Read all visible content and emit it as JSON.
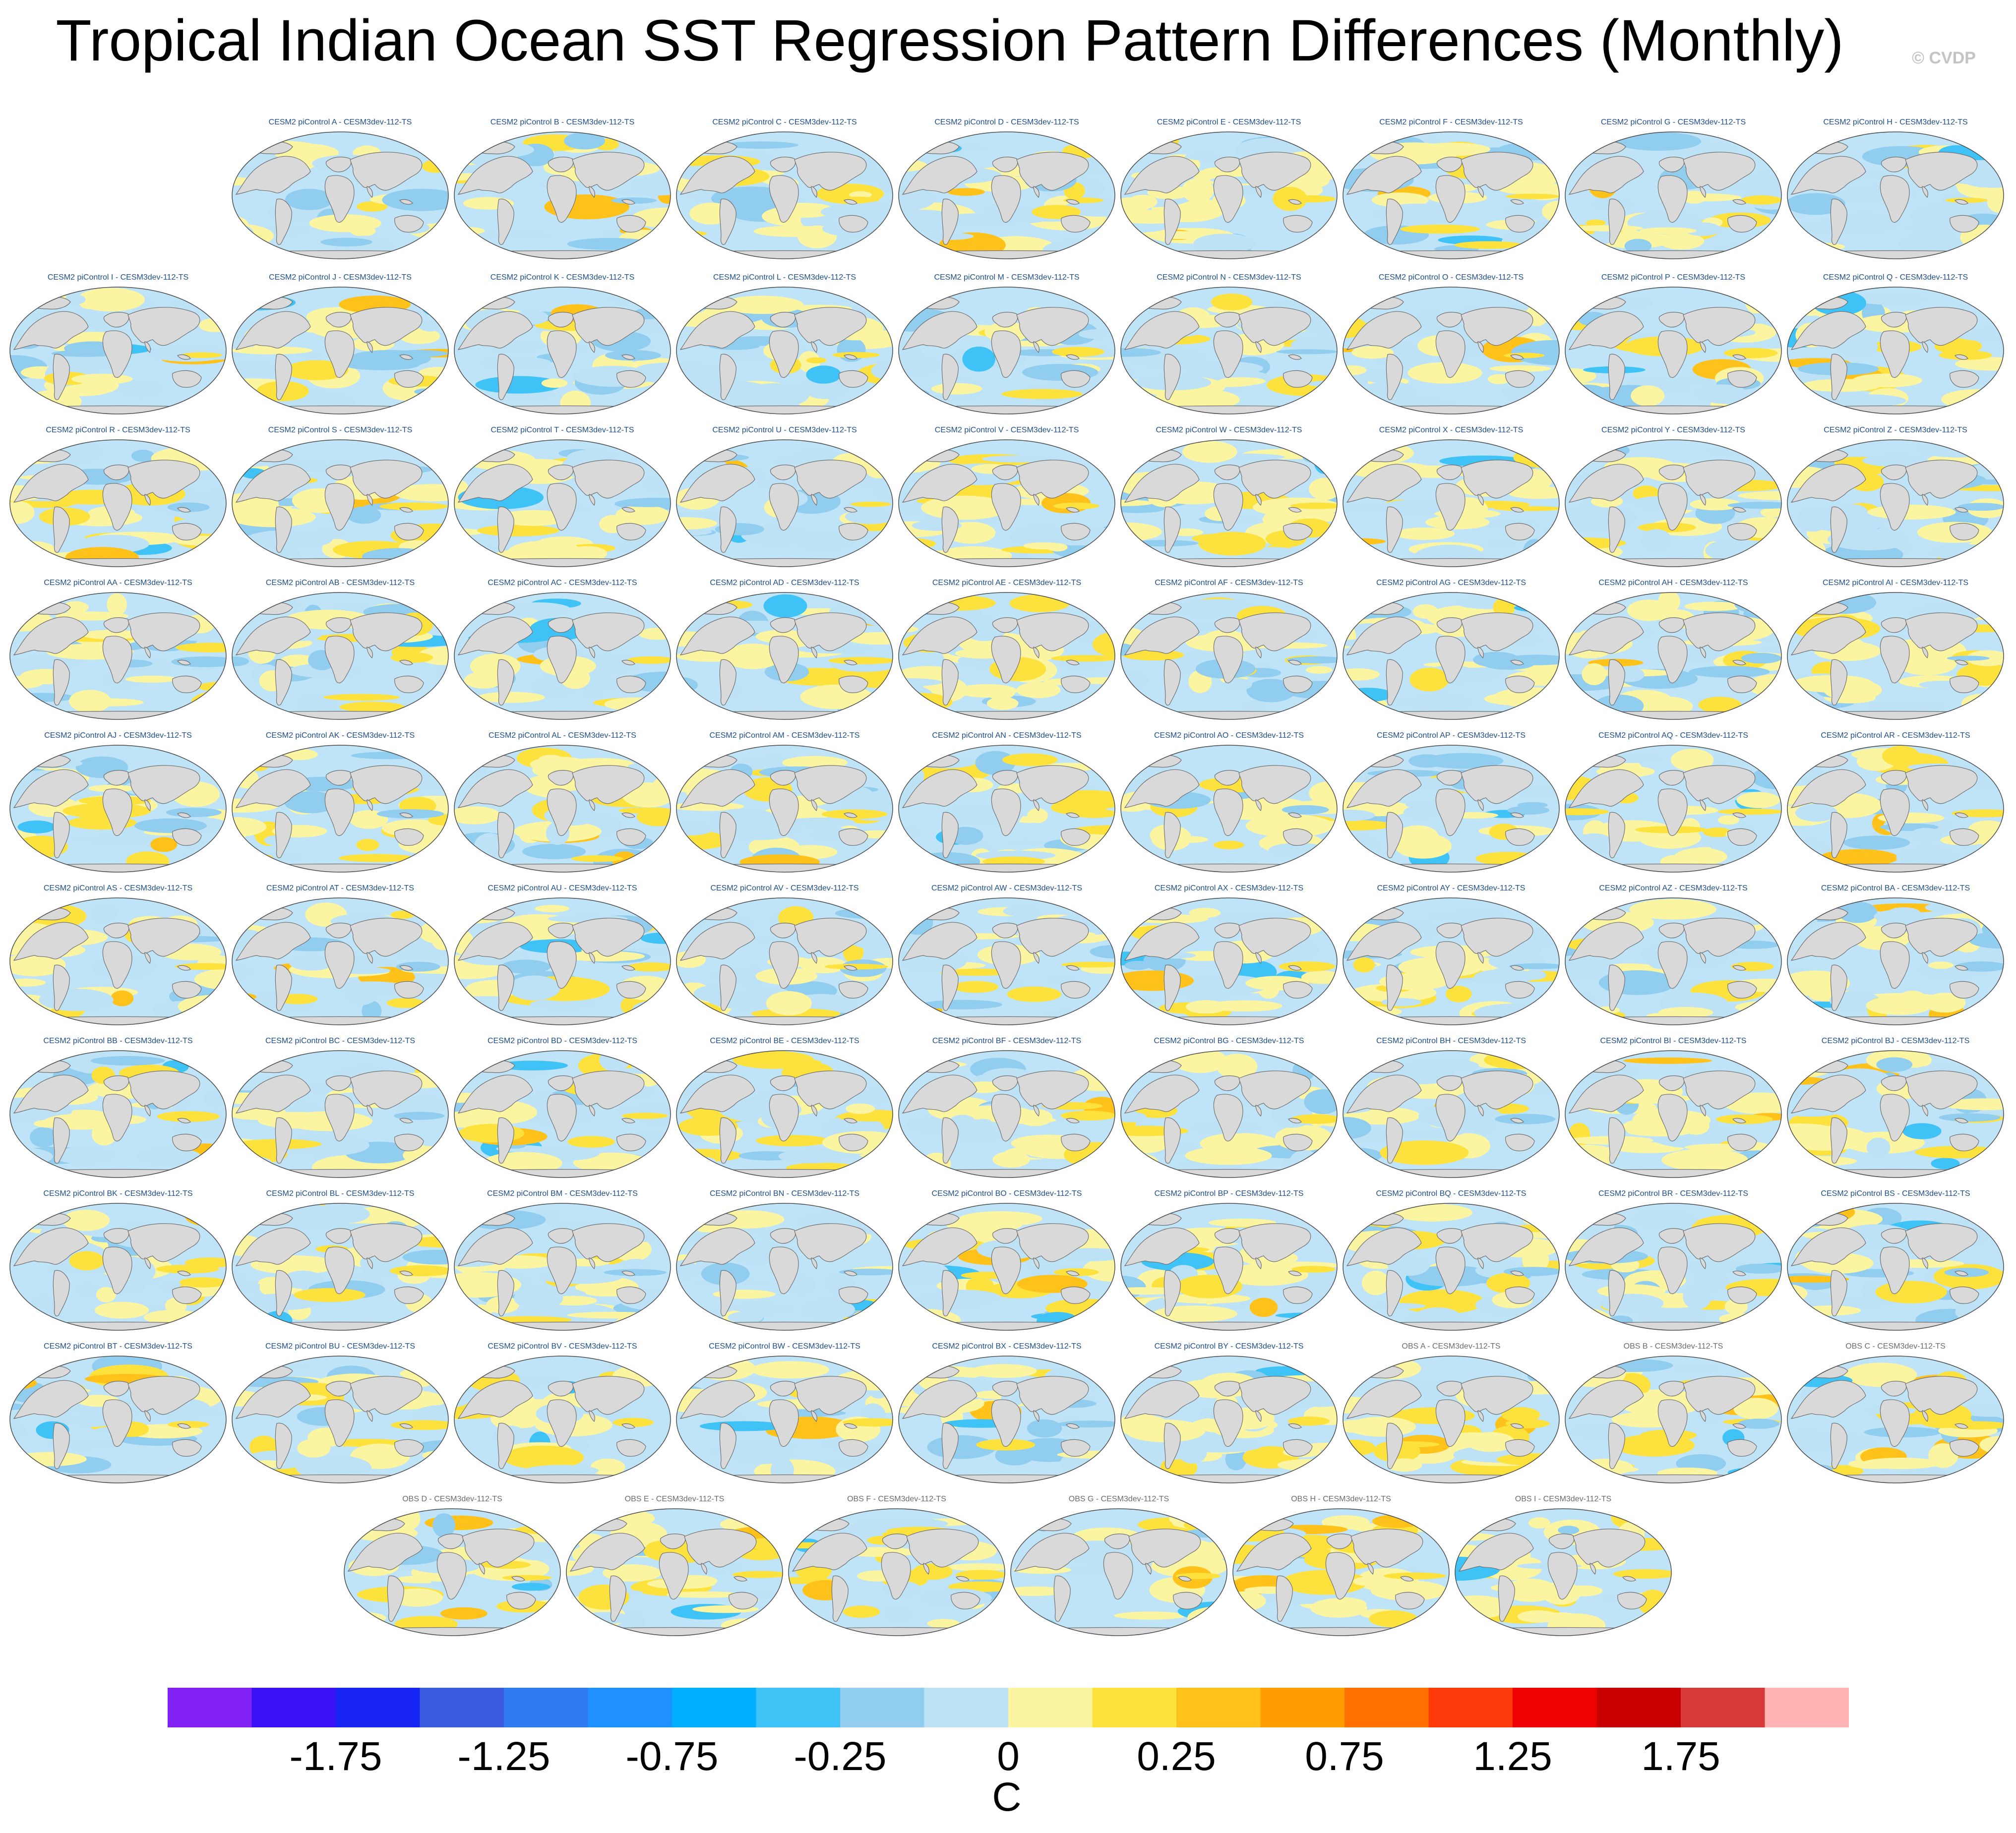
{
  "title": "Tropical Indian Ocean SST Regression Pattern Differences (Monthly)",
  "watermark": "© CVDP",
  "panels": [
    {
      "label": "CESM2 piControl A - CESM3dev-112-TS",
      "type": "model"
    },
    {
      "label": "CESM2 piControl B - CESM3dev-112-TS",
      "type": "model"
    },
    {
      "label": "CESM2 piControl C - CESM3dev-112-TS",
      "type": "model"
    },
    {
      "label": "CESM2 piControl D - CESM3dev-112-TS",
      "type": "model"
    },
    {
      "label": "CESM2 piControl E - CESM3dev-112-TS",
      "type": "model"
    },
    {
      "label": "CESM2 piControl F - CESM3dev-112-TS",
      "type": "model"
    },
    {
      "label": "CESM2 piControl G - CESM3dev-112-TS",
      "type": "model"
    },
    {
      "label": "CESM2 piControl H - CESM3dev-112-TS",
      "type": "model"
    },
    {
      "label": "CESM2 piControl I - CESM3dev-112-TS",
      "type": "model"
    },
    {
      "label": "CESM2 piControl J - CESM3dev-112-TS",
      "type": "model"
    },
    {
      "label": "CESM2 piControl K - CESM3dev-112-TS",
      "type": "model"
    },
    {
      "label": "CESM2 piControl L - CESM3dev-112-TS",
      "type": "model"
    },
    {
      "label": "CESM2 piControl M - CESM3dev-112-TS",
      "type": "model"
    },
    {
      "label": "CESM2 piControl N - CESM3dev-112-TS",
      "type": "model"
    },
    {
      "label": "CESM2 piControl O - CESM3dev-112-TS",
      "type": "model"
    },
    {
      "label": "CESM2 piControl P - CESM3dev-112-TS",
      "type": "model"
    },
    {
      "label": "CESM2 piControl Q - CESM3dev-112-TS",
      "type": "model"
    },
    {
      "label": "CESM2 piControl R - CESM3dev-112-TS",
      "type": "model"
    },
    {
      "label": "CESM2 piControl S - CESM3dev-112-TS",
      "type": "model"
    },
    {
      "label": "CESM2 piControl T - CESM3dev-112-TS",
      "type": "model"
    },
    {
      "label": "CESM2 piControl U - CESM3dev-112-TS",
      "type": "model"
    },
    {
      "label": "CESM2 piControl V - CESM3dev-112-TS",
      "type": "model"
    },
    {
      "label": "CESM2 piControl W - CESM3dev-112-TS",
      "type": "model"
    },
    {
      "label": "CESM2 piControl X - CESM3dev-112-TS",
      "type": "model"
    },
    {
      "label": "CESM2 piControl Y - CESM3dev-112-TS",
      "type": "model"
    },
    {
      "label": "CESM2 piControl Z - CESM3dev-112-TS",
      "type": "model"
    },
    {
      "label": "CESM2 piControl AA - CESM3dev-112-TS",
      "type": "model"
    },
    {
      "label": "CESM2 piControl AB - CESM3dev-112-TS",
      "type": "model"
    },
    {
      "label": "CESM2 piControl AC - CESM3dev-112-TS",
      "type": "model"
    },
    {
      "label": "CESM2 piControl AD - CESM3dev-112-TS",
      "type": "model"
    },
    {
      "label": "CESM2 piControl AE - CESM3dev-112-TS",
      "type": "model"
    },
    {
      "label": "CESM2 piControl AF - CESM3dev-112-TS",
      "type": "model"
    },
    {
      "label": "CESM2 piControl AG - CESM3dev-112-TS",
      "type": "model"
    },
    {
      "label": "CESM2 piControl AH - CESM3dev-112-TS",
      "type": "model"
    },
    {
      "label": "CESM2 piControl AI - CESM3dev-112-TS",
      "type": "model"
    },
    {
      "label": "CESM2 piControl AJ - CESM3dev-112-TS",
      "type": "model"
    },
    {
      "label": "CESM2 piControl AK - CESM3dev-112-TS",
      "type": "model"
    },
    {
      "label": "CESM2 piControl AL - CESM3dev-112-TS",
      "type": "model"
    },
    {
      "label": "CESM2 piControl AM - CESM3dev-112-TS",
      "type": "model"
    },
    {
      "label": "CESM2 piControl AN - CESM3dev-112-TS",
      "type": "model"
    },
    {
      "label": "CESM2 piControl AO - CESM3dev-112-TS",
      "type": "model"
    },
    {
      "label": "CESM2 piControl AP - CESM3dev-112-TS",
      "type": "model"
    },
    {
      "label": "CESM2 piControl AQ - CESM3dev-112-TS",
      "type": "model"
    },
    {
      "label": "CESM2 piControl AR - CESM3dev-112-TS",
      "type": "model"
    },
    {
      "label": "CESM2 piControl AS - CESM3dev-112-TS",
      "type": "model"
    },
    {
      "label": "CESM2 piControl AT - CESM3dev-112-TS",
      "type": "model"
    },
    {
      "label": "CESM2 piControl AU - CESM3dev-112-TS",
      "type": "model"
    },
    {
      "label": "CESM2 piControl AV - CESM3dev-112-TS",
      "type": "model"
    },
    {
      "label": "CESM2 piControl AW - CESM3dev-112-TS",
      "type": "model"
    },
    {
      "label": "CESM2 piControl AX - CESM3dev-112-TS",
      "type": "model"
    },
    {
      "label": "CESM2 piControl AY - CESM3dev-112-TS",
      "type": "model"
    },
    {
      "label": "CESM2 piControl AZ - CESM3dev-112-TS",
      "type": "model"
    },
    {
      "label": "CESM2 piControl BA - CESM3dev-112-TS",
      "type": "model"
    },
    {
      "label": "CESM2 piControl BB - CESM3dev-112-TS",
      "type": "model"
    },
    {
      "label": "CESM2 piControl BC - CESM3dev-112-TS",
      "type": "model"
    },
    {
      "label": "CESM2 piControl BD - CESM3dev-112-TS",
      "type": "model"
    },
    {
      "label": "CESM2 piControl BE - CESM3dev-112-TS",
      "type": "model"
    },
    {
      "label": "CESM2 piControl BF - CESM3dev-112-TS",
      "type": "model"
    },
    {
      "label": "CESM2 piControl BG - CESM3dev-112-TS",
      "type": "model"
    },
    {
      "label": "CESM2 piControl BH - CESM3dev-112-TS",
      "type": "model"
    },
    {
      "label": "CESM2 piControl BI - CESM3dev-112-TS",
      "type": "model"
    },
    {
      "label": "CESM2 piControl BJ - CESM3dev-112-TS",
      "type": "model"
    },
    {
      "label": "CESM2 piControl BK - CESM3dev-112-TS",
      "type": "model"
    },
    {
      "label": "CESM2 piControl BL - CESM3dev-112-TS",
      "type": "model"
    },
    {
      "label": "CESM2 piControl BM - CESM3dev-112-TS",
      "type": "model"
    },
    {
      "label": "CESM2 piControl BN - CESM3dev-112-TS",
      "type": "model"
    },
    {
      "label": "CESM2 piControl BO - CESM3dev-112-TS",
      "type": "model"
    },
    {
      "label": "CESM2 piControl BP - CESM3dev-112-TS",
      "type": "model"
    },
    {
      "label": "CESM2 piControl BQ - CESM3dev-112-TS",
      "type": "model"
    },
    {
      "label": "CESM2 piControl BR - CESM3dev-112-TS",
      "type": "model"
    },
    {
      "label": "CESM2 piControl BS - CESM3dev-112-TS",
      "type": "model"
    },
    {
      "label": "CESM2 piControl BT - CESM3dev-112-TS",
      "type": "model"
    },
    {
      "label": "CESM2 piControl BU - CESM3dev-112-TS",
      "type": "model"
    },
    {
      "label": "CESM2 piControl BV - CESM3dev-112-TS",
      "type": "model"
    },
    {
      "label": "CESM2 piControl BW - CESM3dev-112-TS",
      "type": "model"
    },
    {
      "label": "CESM2 piControl BX - CESM3dev-112-TS",
      "type": "model"
    },
    {
      "label": "CESM2 piControl BY - CESM3dev-112-TS",
      "type": "model"
    },
    {
      "label": "OBS A - CESM3dev-112-TS",
      "type": "obs"
    },
    {
      "label": "OBS B - CESM3dev-112-TS",
      "type": "obs"
    },
    {
      "label": "OBS C - CESM3dev-112-TS",
      "type": "obs"
    },
    {
      "label": "OBS D - CESM3dev-112-TS",
      "type": "obs"
    },
    {
      "label": "OBS E - CESM3dev-112-TS",
      "type": "obs"
    },
    {
      "label": "OBS F - CESM3dev-112-TS",
      "type": "obs"
    },
    {
      "label": "OBS G - CESM3dev-112-TS",
      "type": "obs"
    },
    {
      "label": "OBS H - CESM3dev-112-TS",
      "type": "obs"
    },
    {
      "label": "OBS I - CESM3dev-112-TS",
      "type": "obs"
    }
  ],
  "colors": {
    "land": "#d9d9d9",
    "coastline": "#6f6f6f",
    "ocean_background": "#bfe3f7",
    "model_title": "#1f4e8c",
    "obs_title": "#6c6c6c"
  },
  "colorbar": {
    "colors": [
      "#8121f4",
      "#3a10f5",
      "#1724f2",
      "#3a5be0",
      "#2e7aee",
      "#1e90ff",
      "#00b0ff",
      "#3fc2f6",
      "#90cdef",
      "#bde2f6",
      "#fbf5a1",
      "#fde13c",
      "#ffc21a",
      "#ff9d00",
      "#ff7000",
      "#ff3a0a",
      "#f00000",
      "#c80000",
      "#d63a3a",
      "#ffb3b3"
    ],
    "tick_labels": [
      "-1.75",
      "-1.25",
      "-0.75",
      "-0.25",
      "0",
      "0.25",
      "0.75",
      "1.25",
      "1.75"
    ],
    "tick_values": [
      -1.75,
      -1.25,
      -0.75,
      -0.25,
      0,
      0.25,
      0.75,
      1.25,
      1.75
    ],
    "units": "C"
  }
}
